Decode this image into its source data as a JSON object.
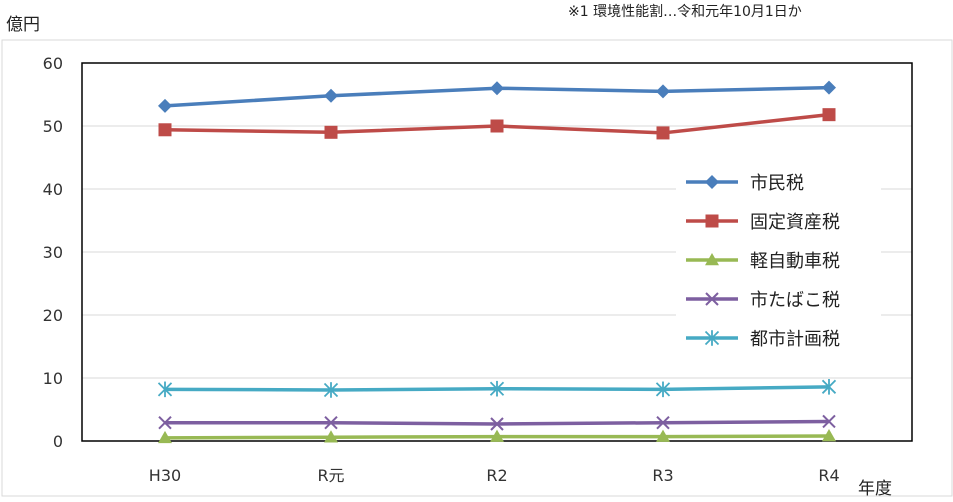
{
  "note": "※1  環境性能割…令和元年10月1日か",
  "chart_data": {
    "type": "line",
    "title": "",
    "ylabel": "億円",
    "xlabel": "年度",
    "ylim": [
      0,
      60
    ],
    "yticks": [
      0,
      10,
      20,
      30,
      40,
      50,
      60
    ],
    "categories": [
      "H30",
      "R元",
      "R2",
      "R3",
      "R4"
    ],
    "grid": true,
    "legend_position": "right",
    "series": [
      {
        "name": "市民税",
        "marker": "diamond",
        "color": "#4a7ebb",
        "values": [
          53.2,
          54.8,
          56.0,
          55.5,
          56.1
        ]
      },
      {
        "name": "固定資産税",
        "marker": "square",
        "color": "#be4b48",
        "values": [
          49.4,
          49.0,
          50.0,
          48.9,
          51.8
        ]
      },
      {
        "name": "軽自動車税",
        "marker": "triangle",
        "color": "#98b954",
        "values": [
          0.5,
          0.6,
          0.7,
          0.7,
          0.8
        ]
      },
      {
        "name": "市たばこ税",
        "marker": "x",
        "color": "#7d5fa0",
        "values": [
          2.9,
          2.9,
          2.7,
          2.9,
          3.1
        ]
      },
      {
        "name": "都市計画税",
        "marker": "asterisk",
        "color": "#46aac4",
        "values": [
          8.2,
          8.1,
          8.3,
          8.2,
          8.6
        ]
      }
    ]
  }
}
